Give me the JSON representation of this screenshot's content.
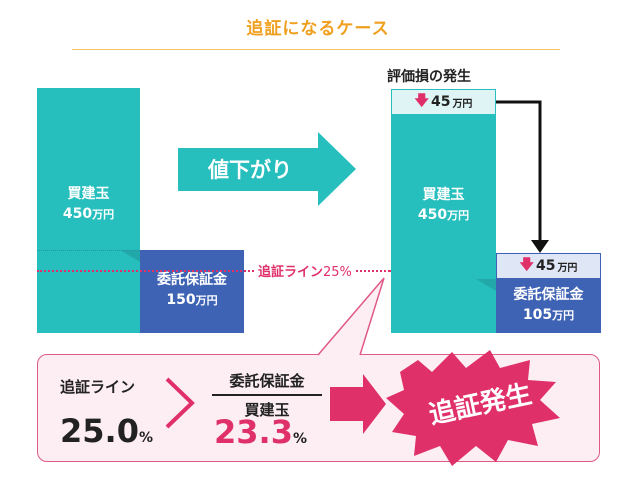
{
  "title": "追証になるケース",
  "left": {
    "buy_label": "買建玉",
    "buy_amount": "450",
    "deposit_label": "委託保証金",
    "deposit_amount": "150"
  },
  "unit": "万円",
  "arrow_label": "値下がり",
  "cutline": {
    "label": "追証ライン",
    "pct": "25%"
  },
  "right": {
    "loss_title": "評価損の発生",
    "loss_amount": "45",
    "buy_label": "買建玉",
    "buy_amount": "450",
    "moved_amount": "45",
    "deposit_label": "委託保証金",
    "deposit_amount": "105"
  },
  "panel": {
    "line_label": "追証ライン",
    "line_value": "25.0",
    "line_unit": "%",
    "numerator": "委託保証金",
    "denominator": "買建玉",
    "ratio_value": "23.3",
    "ratio_unit": "%",
    "result": "追証発生"
  },
  "colors": {
    "teal": "#27bfbe",
    "navy": "#3e62b4",
    "pink": "#e0306a",
    "orange": "#f0a020"
  }
}
